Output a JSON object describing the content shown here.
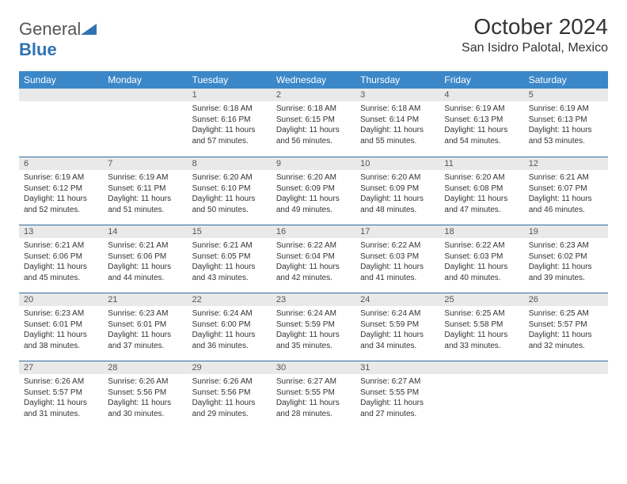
{
  "logo": {
    "text_gray": "General",
    "text_blue": "Blue"
  },
  "title": "October 2024",
  "location": "San Isidro Palotal, Mexico",
  "colors": {
    "header_bg": "#3b87c8",
    "header_fg": "#ffffff",
    "daynum_bg": "#e9e9e9",
    "border": "#2f6aa0",
    "text": "#333333"
  },
  "weekdays": [
    "Sunday",
    "Monday",
    "Tuesday",
    "Wednesday",
    "Thursday",
    "Friday",
    "Saturday"
  ],
  "leading_blanks": 2,
  "days": [
    {
      "n": 1,
      "sr": "6:18 AM",
      "ss": "6:16 PM",
      "dl": "11 hours and 57 minutes."
    },
    {
      "n": 2,
      "sr": "6:18 AM",
      "ss": "6:15 PM",
      "dl": "11 hours and 56 minutes."
    },
    {
      "n": 3,
      "sr": "6:18 AM",
      "ss": "6:14 PM",
      "dl": "11 hours and 55 minutes."
    },
    {
      "n": 4,
      "sr": "6:19 AM",
      "ss": "6:13 PM",
      "dl": "11 hours and 54 minutes."
    },
    {
      "n": 5,
      "sr": "6:19 AM",
      "ss": "6:13 PM",
      "dl": "11 hours and 53 minutes."
    },
    {
      "n": 6,
      "sr": "6:19 AM",
      "ss": "6:12 PM",
      "dl": "11 hours and 52 minutes."
    },
    {
      "n": 7,
      "sr": "6:19 AM",
      "ss": "6:11 PM",
      "dl": "11 hours and 51 minutes."
    },
    {
      "n": 8,
      "sr": "6:20 AM",
      "ss": "6:10 PM",
      "dl": "11 hours and 50 minutes."
    },
    {
      "n": 9,
      "sr": "6:20 AM",
      "ss": "6:09 PM",
      "dl": "11 hours and 49 minutes."
    },
    {
      "n": 10,
      "sr": "6:20 AM",
      "ss": "6:09 PM",
      "dl": "11 hours and 48 minutes."
    },
    {
      "n": 11,
      "sr": "6:20 AM",
      "ss": "6:08 PM",
      "dl": "11 hours and 47 minutes."
    },
    {
      "n": 12,
      "sr": "6:21 AM",
      "ss": "6:07 PM",
      "dl": "11 hours and 46 minutes."
    },
    {
      "n": 13,
      "sr": "6:21 AM",
      "ss": "6:06 PM",
      "dl": "11 hours and 45 minutes."
    },
    {
      "n": 14,
      "sr": "6:21 AM",
      "ss": "6:06 PM",
      "dl": "11 hours and 44 minutes."
    },
    {
      "n": 15,
      "sr": "6:21 AM",
      "ss": "6:05 PM",
      "dl": "11 hours and 43 minutes."
    },
    {
      "n": 16,
      "sr": "6:22 AM",
      "ss": "6:04 PM",
      "dl": "11 hours and 42 minutes."
    },
    {
      "n": 17,
      "sr": "6:22 AM",
      "ss": "6:03 PM",
      "dl": "11 hours and 41 minutes."
    },
    {
      "n": 18,
      "sr": "6:22 AM",
      "ss": "6:03 PM",
      "dl": "11 hours and 40 minutes."
    },
    {
      "n": 19,
      "sr": "6:23 AM",
      "ss": "6:02 PM",
      "dl": "11 hours and 39 minutes."
    },
    {
      "n": 20,
      "sr": "6:23 AM",
      "ss": "6:01 PM",
      "dl": "11 hours and 38 minutes."
    },
    {
      "n": 21,
      "sr": "6:23 AM",
      "ss": "6:01 PM",
      "dl": "11 hours and 37 minutes."
    },
    {
      "n": 22,
      "sr": "6:24 AM",
      "ss": "6:00 PM",
      "dl": "11 hours and 36 minutes."
    },
    {
      "n": 23,
      "sr": "6:24 AM",
      "ss": "5:59 PM",
      "dl": "11 hours and 35 minutes."
    },
    {
      "n": 24,
      "sr": "6:24 AM",
      "ss": "5:59 PM",
      "dl": "11 hours and 34 minutes."
    },
    {
      "n": 25,
      "sr": "6:25 AM",
      "ss": "5:58 PM",
      "dl": "11 hours and 33 minutes."
    },
    {
      "n": 26,
      "sr": "6:25 AM",
      "ss": "5:57 PM",
      "dl": "11 hours and 32 minutes."
    },
    {
      "n": 27,
      "sr": "6:26 AM",
      "ss": "5:57 PM",
      "dl": "11 hours and 31 minutes."
    },
    {
      "n": 28,
      "sr": "6:26 AM",
      "ss": "5:56 PM",
      "dl": "11 hours and 30 minutes."
    },
    {
      "n": 29,
      "sr": "6:26 AM",
      "ss": "5:56 PM",
      "dl": "11 hours and 29 minutes."
    },
    {
      "n": 30,
      "sr": "6:27 AM",
      "ss": "5:55 PM",
      "dl": "11 hours and 28 minutes."
    },
    {
      "n": 31,
      "sr": "6:27 AM",
      "ss": "5:55 PM",
      "dl": "11 hours and 27 minutes."
    }
  ],
  "labels": {
    "sunrise": "Sunrise:",
    "sunset": "Sunset:",
    "daylight": "Daylight:"
  }
}
